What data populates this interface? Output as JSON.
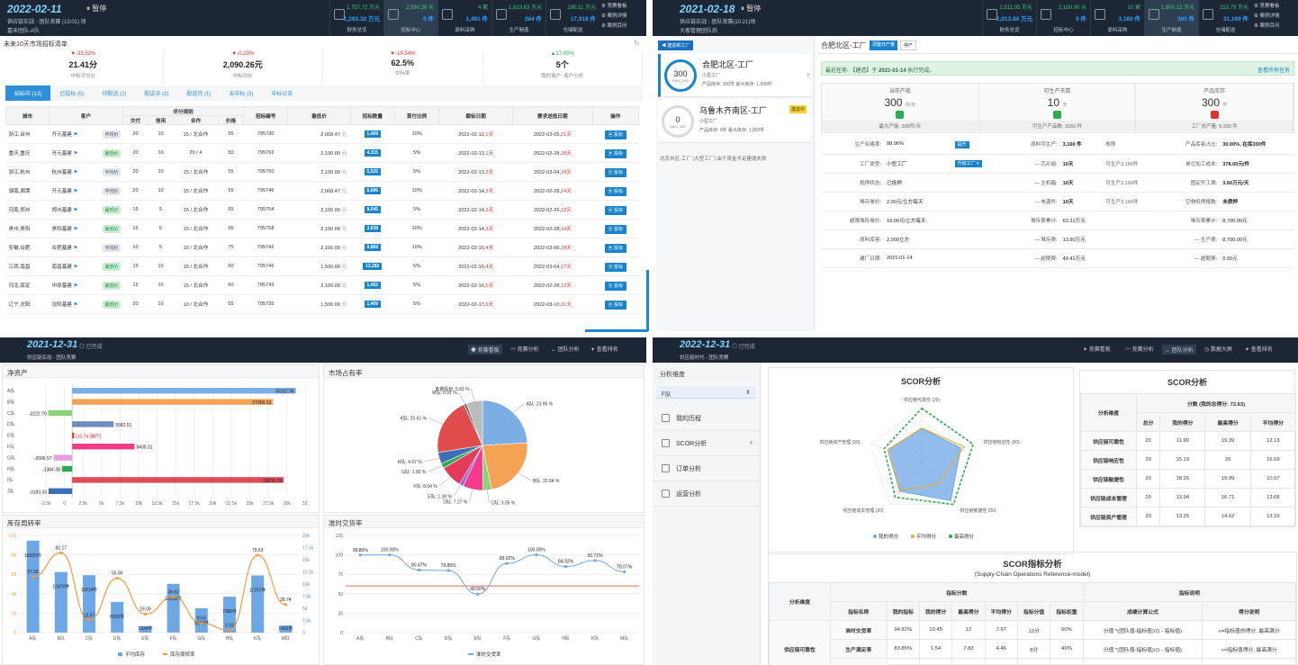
{
  "q1": {
    "date": "2022-02-11",
    "pause": "暂停",
    "sub": "供应链实战 - 团队竞赛 (13:01) 场",
    "team": "嘉禾团队-A队",
    "kpis": [
      {
        "v1": "1,757.72 万元",
        "v2": "1,293.32 万元",
        "label": "财务总览"
      },
      {
        "v1": "2,090.26 元",
        "v2": "0 件",
        "label": "招标中心"
      },
      {
        "v1": "4 家",
        "v2": "1,491 件",
        "label": "原料采购"
      },
      {
        "v1": "1,819.63 万元",
        "v2": "284 件",
        "label": "生产制造"
      },
      {
        "v1": "190.11 万元",
        "v2": "17,918 件",
        "label": "仓储配送"
      }
    ],
    "menu": [
      "竞赛看板",
      "案例详情",
      "案例百问"
    ],
    "title": "未来10天市场招标清单",
    "stats": [
      {
        "pct": "▼-33.52%",
        "val": "21.41分",
        "cap": "中标平均分",
        "color": "#e0312b"
      },
      {
        "pct": "▼-0.23%",
        "val": "2,090.26元",
        "cap": "中标均价",
        "color": "#e0312b"
      },
      {
        "pct": "▼-19.54%",
        "val": "62.5%",
        "cap": "中标率",
        "color": "#e0312b"
      },
      {
        "pct": "▲17.65%",
        "val": "5个",
        "cap": "我的客户, 客户分析",
        "color": "#2bab4f"
      }
    ],
    "tabs": [
      "招标中 (13)",
      "已投标 (0)",
      "待配送 (2)",
      "配送中 (2)",
      "配送完 (1)",
      "未中标 (3)",
      "中标公告"
    ],
    "headers": [
      "城市",
      "客户",
      "评分规则",
      "招标编号",
      "最低价",
      "招标数量",
      "首付比例",
      "截标日期",
      "要求送抵日期",
      "操作"
    ],
    "subheaders": [
      "交付",
      "信用",
      "合作",
      "价格"
    ],
    "unit_yuan": "元",
    "unit_fr": "元/台",
    "bid": "投标",
    "rows": [
      {
        "city": "浙江,台州",
        "cust": "开元基建",
        "tag": "平均价",
        "tg": "p",
        "d": "20",
        "c": "10",
        "h": "15 / 北合作",
        "p": "55",
        "no": "795730",
        "low": "2,068.47",
        "qty": "1,409",
        "pay": "10%",
        "end": "2022-02-12,",
        "endd": "1天",
        "req": "2022-03-05,",
        "reqd": "21天"
      },
      {
        "city": "重庆,重庆",
        "cust": "开元基建",
        "tag": "最低价",
        "tg": "b",
        "d": "20",
        "c": "10",
        "h": "20 / 4",
        "p": "50",
        "no": "795762",
        "low": "2,100.00",
        "qty": "4,315",
        "pay": "5%",
        "end": "2022-02-13,",
        "endd": "1天",
        "req": "2022-02-28,",
        "reqd": "18天"
      },
      {
        "city": "浙江,杭州",
        "cust": "杭州基建",
        "tag": "平均价",
        "tg": "p",
        "d": "20",
        "c": "10",
        "h": "15 / 北合作",
        "p": "55",
        "no": "795750",
        "low": "2,100.00",
        "qty": "5,525",
        "pay": "5%",
        "end": "2022-02-13,",
        "endd": "2天",
        "req": "2022-03-04,",
        "reqd": "19天"
      },
      {
        "city": "湖南,湘潭",
        "cust": "开元基建",
        "tag": "平均价",
        "tg": "p",
        "d": "20",
        "c": "10",
        "h": "15 / 北合作",
        "p": "55",
        "no": "795746",
        "low": "2,068.47",
        "qty": "5,696",
        "pay": "10%",
        "end": "2022-02-14,",
        "endd": "3天",
        "req": "2022-02-28,",
        "reqd": "14天"
      },
      {
        "city": "河南,郑州",
        "cust": "郑州基建",
        "tag": "最低价",
        "tg": "b",
        "d": "15",
        "c": "5",
        "h": "15 / 北合作",
        "p": "65",
        "no": "795754",
        "low": "2,100.00",
        "qty": "8,545",
        "pay": "5%",
        "end": "2022-02-14,",
        "endd": "3天",
        "req": "2022-02-26,",
        "reqd": "12天"
      },
      {
        "city": "贵州,贵阳",
        "cust": "贵阳基建",
        "tag": "最低价",
        "tg": "b",
        "d": "15",
        "c": "5",
        "h": "15 / 北合作",
        "p": "65",
        "no": "795758",
        "low": "2,100.00",
        "qty": "3,639",
        "pay": "10%",
        "end": "2022-02-14,",
        "endd": "3天",
        "req": "2022-02-28,",
        "reqd": "14天"
      },
      {
        "city": "安徽,合肥",
        "cust": "合肥基建",
        "tag": "平均价",
        "tg": "p",
        "d": "10",
        "c": "5",
        "h": "10 / 北合作",
        "p": "75",
        "no": "795742",
        "low": "2,100.00",
        "qty": "9,869",
        "pay": "10%",
        "end": "2022-02-15,",
        "endd": "4天",
        "req": "2022-03-06,",
        "reqd": "19天"
      },
      {
        "city": "江西,南昌",
        "cust": "南昌基建",
        "tag": "最低价",
        "tg": "b",
        "d": "15",
        "c": "10",
        "h": "15 / 北合作",
        "p": "60",
        "no": "795746",
        "low": "1,500.00",
        "qty": "13,282",
        "pay": "5%",
        "end": "2022-02-15,",
        "endd": "4天",
        "req": "2022-03-04,",
        "reqd": "17天"
      },
      {
        "city": "河北,保定",
        "cust": "中原基建",
        "tag": "最低价",
        "tg": "b",
        "d": "15",
        "c": "10",
        "h": "15 / 北合作",
        "p": "60",
        "no": "795743",
        "low": "2,100.00",
        "qty": "1,452",
        "pay": "5%",
        "end": "2022-02-16,",
        "endd": "5天",
        "req": "2022-02-28,",
        "reqd": "12天"
      },
      {
        "city": "辽宁,沈阳",
        "cust": "沈阳基建",
        "tag": "最低价",
        "tg": "b",
        "d": "20",
        "c": "10",
        "h": "10 / 北合作",
        "p": "65",
        "no": "795735",
        "low": "1,500.00",
        "qty": "1,409",
        "pay": "5%",
        "end": "2022-02-17,",
        "endd": "6天",
        "req": "2022-03-10,",
        "reqd": "21天"
      }
    ]
  },
  "q2": {
    "date": "2021-02-18",
    "pause": "暂停",
    "sub": "供应链实战 - 团队竞赛(10:21)场",
    "team": "大客管理团队后",
    "kpis": [
      {
        "v1": "2,511.05 万元",
        "v2": "1,013.80 万元",
        "label": "财务总览"
      },
      {
        "v1": "2,100.00 元",
        "v2": "0 件",
        "label": "招标中心"
      },
      {
        "v1": "10 家",
        "v2": "3,160 件",
        "label": "原料采购"
      },
      {
        "v1": "1,800.12 万元",
        "v2": "300 件",
        "label": "生产制造"
      },
      {
        "v1": "153.79 万元",
        "v2": "31,199 件",
        "label": "仓储配送"
      }
    ],
    "menu": [
      "竞赛看板",
      "案例详情",
      "案例百问"
    ],
    "newbtn": "建造新工厂",
    "factories": [
      {
        "num": "300",
        "max": "MAX: 300",
        "name": "合肥北区-工厂",
        "type": "小型工厂",
        "cap": "产品库存: 300件    最大库存: 1,000件",
        "badge": ""
      },
      {
        "num": "0",
        "max": "MAX: 300",
        "name": "乌鲁木齐南区-工厂",
        "type": "小型工厂",
        "cap": "产品库存: 0件    最大库存: 1,000件",
        "badge": "建造中"
      }
    ],
    "note": "北京市区-工厂 (大型工厂) 由于资金不足建造失败",
    "title": "合肥北区-工厂",
    "sw1": "调整日产量",
    "sw2": "停产",
    "alert_pre": "最近任务: 【建造】于",
    "alert_date": "2021-01-14",
    "alert_post": "执行完成。",
    "alert_link": "查看所有任务",
    "cards": [
      {
        "lb": "当前产能",
        "v": "300",
        "u": "件/天",
        "c": "#2bab4f",
        "ft": "最大产能: 300件/天"
      },
      {
        "lb": "可生产天数",
        "v": "10",
        "u": "天",
        "c": "#2bab4f",
        "ft": "可生产产品数: 3160 件"
      },
      {
        "lb": "产品库存",
        "v": "300",
        "u": "件",
        "c": "#e0312b",
        "ft": "工厂总产量: 9,300 件"
      }
    ],
    "grid": [
      [
        "生产合格率:",
        "88.96%",
        "提升",
        "原料可生产:",
        "3,160 件",
        "故障",
        "产品库容占比:",
        "30.00%, 在库300件"
      ],
      [
        "工厂类型:",
        "小型工厂",
        "升级工厂 ▾",
        "— 芯片組:",
        "10天",
        "可生产3,160件",
        "单位加工成本:",
        "378.00元/件"
      ],
      [
        "抵押状态:",
        "已抵押",
        "",
        "— 主机箱:",
        "10天",
        "可生产3,160件",
        "固定开工费:",
        "3.60万元/天"
      ],
      [
        "堆存单价:",
        "2.00元/立方每天",
        "",
        "— 电源件:",
        "10天",
        "可生产3,160件",
        "空物抵押报数:",
        "未质押"
      ],
      [
        "超限堆存单价:",
        "10.00元/立方每天",
        "",
        "堆存费累计:",
        "63.31万元",
        "",
        "堆存费累计:",
        "8,700.00元"
      ],
      [
        "原料库容:",
        "2,000立方",
        "",
        "— 堆存费:",
        "13.90万元",
        "",
        "— 生产费:",
        "8,700.00元"
      ],
      [
        "建厂日期:",
        "2021-01-14",
        "",
        "— 超期费:",
        "49.41万元",
        "",
        "— 超期费:",
        "0.00元"
      ]
    ]
  },
  "q3": {
    "date": "2021-12-31",
    "status": "已完成",
    "sub": "供应链实战 - 团队竞赛",
    "nav": [
      "竞赛看板",
      "竞赛分析",
      "团队分析",
      "查看排名"
    ],
    "p1": "净资产",
    "p2": "市场占有率",
    "p3": "库存周转率",
    "p4": "准时交货率",
    "legend3": [
      "平均库存",
      "库存周转率"
    ],
    "legend4": "准时交货率"
  },
  "q4": {
    "date": "2022-12-31",
    "status": "已完成",
    "sub": "供应链时代 - 团队竞赛",
    "nav": [
      "竞赛看板",
      "竞赛分析",
      "团队分析",
      "数据大屏",
      "查看排名"
    ],
    "side_head": "分析维度",
    "side_sel": "F队",
    "side_items": [
      "我的历程",
      "SCOR分析",
      "订单分析",
      "运营分析"
    ],
    "radar_title": "SCOR分析",
    "radar_axes": [
      "供应链可靠性 (20)",
      "供应链响应性 (20)",
      "供应链敏捷性 (20)",
      "供应链成本管理 (20)",
      "供应链资产管理 (20)"
    ],
    "radar_legend": [
      "我的得分",
      "平均得分",
      "最高得分"
    ],
    "t1_title": "SCOR分析",
    "t1_head": [
      "分析维度",
      "分数 (我的总得分: 72.63)",
      "总分",
      "我的得分",
      "最高得分",
      "平均得分"
    ],
    "t1_rows": [
      [
        "供应链可靠性",
        "20",
        "11.99",
        "19.39",
        "12.13"
      ],
      [
        "供应链响应性",
        "20",
        "15.19",
        "20",
        "16.59"
      ],
      [
        "供应链敏捷性",
        "20",
        "18.26",
        "19.99",
        "10.57"
      ],
      [
        "供应链成本管理",
        "20",
        "13.94",
        "16.71",
        "13.68"
      ],
      [
        "供应链资产管理",
        "20",
        "13.25",
        "14.62",
        "13.15"
      ]
    ],
    "t2_title": "SCOR指标分析",
    "t2_sub": "(Supply-Chain Operations Reference-model)",
    "t2_h1": [
      "分析维度",
      "指标分数",
      "指标说明"
    ],
    "t2_h2": [
      "指标名称",
      "我的指标",
      "我的得分",
      "最高得分",
      "平均得分",
      "指标分值",
      "指标权重",
      "成绩计算公式",
      "得分说明"
    ],
    "t2_group": "供应链可靠性",
    "t2_rows": [
      [
        "准时交货率",
        "94.82%",
        "10.45",
        "12",
        "7.67",
        "12分",
        "60%",
        "分值 *(团队值-指标值)/(1 - 指标值)",
        "<=指标值的得分, 最高满分"
      ],
      [
        "生产满足率",
        "83.85%",
        "1.54",
        "7.83",
        "4.46",
        "8分",
        "40%",
        "分值 *(团队值-指标值)/(1 - 指标值)",
        "<=指标值得分, 最高满分"
      ],
      [
        "产品库存周转率",
        "39.85",
        "3.19",
        "8",
        "4.69",
        "8分",
        "100",
        "分值 *(团队值-指标值)",
        "<=指标值的得分, 最高8分"
      ]
    ]
  },
  "chart_data": [
    {
      "type": "bar",
      "title": "净资产",
      "orientation": "horizontal",
      "categories": [
        "A队",
        "B队",
        "C队",
        "D队",
        "E队",
        "F队",
        "G队",
        "H队",
        "I队",
        "J队"
      ],
      "values": [
        30152.94,
        27058.12,
        -3222.79,
        5582.51,
        116.74,
        8400.31,
        -2506.57,
        -1384.38,
        28510.29,
        -3183.33
      ],
      "colors": [
        "#7aaee4",
        "#f6a255",
        "#8ad37a",
        "#6a8fbf",
        "#e0312b",
        "#f33b8c",
        "#e7a1e0",
        "#2bab4f",
        "#e04b5b",
        "#3d6fb8"
      ],
      "annotation": "116.74 [破产]",
      "xlim": [
        -5000,
        32500
      ],
      "ticks": [
        "-2.5k",
        "0",
        "2.5k",
        "5k",
        "7.5k",
        "10k",
        "12.5k",
        "15k",
        "17.5k",
        "20k",
        "22.5k",
        "25k",
        "27.5k",
        "30k",
        "32."
      ]
    },
    {
      "type": "pie",
      "title": "市场占有率",
      "slices": [
        {
          "label": "A队",
          "value": 23.95,
          "color": "#7aaee4"
        },
        {
          "label": "B队",
          "value": 22.54,
          "color": "#f6a255"
        },
        {
          "label": "C队",
          "value": 3.05,
          "color": "#8ad37a"
        },
        {
          "label": "D队",
          "value": 7.27,
          "color": "#f33b8c"
        },
        {
          "label": "E队",
          "value": 1.39,
          "color": "#a066d0"
        },
        {
          "label": "F队",
          "value": 8.04,
          "color": "#e43a5c"
        },
        {
          "label": "G队",
          "value": 1.8,
          "color": "#2bab4f"
        },
        {
          "label": "H队",
          "value": 4.07,
          "color": "#3d6fb8"
        },
        {
          "label": "K队",
          "value": 20.61,
          "color": "#e04b4b"
        },
        {
          "label": "M队",
          "value": 0.91,
          "color": "#666666"
        },
        {
          "label": "未被投标",
          "value": 5.83,
          "color": "#bbbbbb"
        }
      ]
    },
    {
      "type": "bar",
      "title": "库存周转率",
      "categories": [
        "A队",
        "B队",
        "C队",
        "D队",
        "E队",
        "F队",
        "G队",
        "H队",
        "K队",
        "M队"
      ],
      "series": [
        {
          "name": "平均库存",
          "type": "bar",
          "values": [
            18920,
            12470,
            11814,
            6320,
            1334,
            10036,
            5015,
            7386,
            11767,
            1462
          ]
        },
        {
          "name": "库存周转率",
          "type": "line",
          "values": [
            57.55,
            82.17,
            12.57,
            55.9,
            19.09,
            36.62,
            9.53,
            2.33,
            79.63,
            28.74
          ]
        }
      ],
      "ylim_left": [
        0,
        100
      ],
      "ylim_right": [
        0,
        20000
      ],
      "left_ticks": [
        "0",
        "20",
        "40",
        "60",
        "80",
        "100"
      ],
      "right_ticks": [
        "0",
        "2.5k",
        "5k",
        "7.5k",
        "10k",
        "12.5k",
        "15k",
        "17.5k",
        "20k"
      ]
    },
    {
      "type": "line",
      "title": "准时交货率",
      "categories": [
        "A队",
        "B队",
        "C队",
        "D队",
        "E队",
        "F队",
        "G队",
        "H队",
        "K队",
        "M队"
      ],
      "values": [
        99.8,
        100.0,
        80.47,
        79.85,
        49.5,
        89.02,
        100.0,
        84.92,
        92.71,
        78.07
      ],
      "labels": [
        "99.80%",
        "100.00%",
        "80.47%",
        "79.85%",
        "49.50%",
        "89.02%",
        "100.00%",
        "84.92%",
        "92.71%",
        "78.07%"
      ],
      "threshold": 60,
      "ylim": [
        0,
        125
      ],
      "yticks": [
        "0",
        "25",
        "50",
        "75",
        "100",
        "125"
      ]
    },
    {
      "type": "radar",
      "title": "SCOR分析",
      "axes": [
        "供应链可靠性",
        "供应链响应性",
        "供应链敏捷性",
        "供应链成本管理",
        "供应链资产管理"
      ],
      "max": 20,
      "series": [
        {
          "name": "我的得分",
          "values": [
            11.99,
            15.19,
            18.26,
            13.94,
            13.25
          ],
          "color": "#6da7e6"
        },
        {
          "name": "平均得分",
          "values": [
            12.13,
            16.59,
            10.57,
            13.68,
            13.15
          ],
          "color": "#f6a825"
        },
        {
          "name": "最高得分",
          "values": [
            19.39,
            20,
            19.99,
            16.71,
            14.62
          ],
          "color": "#2bab4f"
        }
      ]
    }
  ]
}
